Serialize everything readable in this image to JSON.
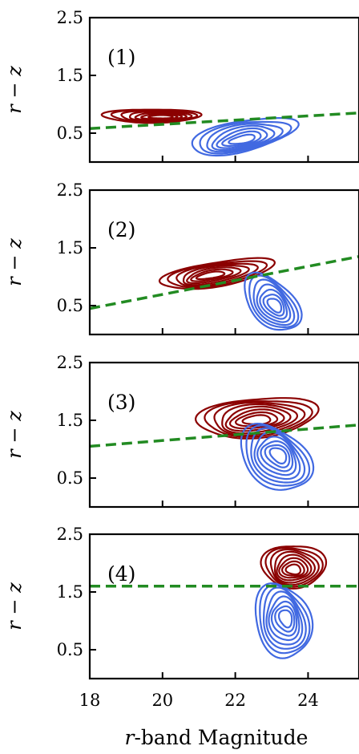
{
  "colors": {
    "bright_contour": "#8b0000",
    "faint_contour": "#4169e1",
    "divider_line": "#228b22"
  },
  "chart_data": {
    "type": "contour",
    "xlabel_var": "r",
    "xlabel_rest": "-band Magnitude",
    "xlim": [
      18,
      25.4
    ],
    "x_ticks": [
      "18",
      "20",
      "22",
      "24"
    ],
    "ylabel": "r − z",
    "ylim": [
      0,
      2.5
    ],
    "y_ticks": [
      "2.5",
      "1.5",
      "0.5"
    ],
    "panels": [
      {
        "label": "(1)",
        "divider_line": {
          "x": [
            18,
            25.4
          ],
          "y": [
            0.58,
            0.85
          ]
        },
        "series": [
          {
            "color_key": "bright_contour",
            "center": [
              19.7,
              0.8
            ],
            "peak": [
              20.0,
              0.78
            ],
            "spread": [
              1.3,
              0.12
            ],
            "tilt": 0.0,
            "levels": 7
          },
          {
            "color_key": "faint_contour",
            "center": [
              22.2,
              0.45
            ],
            "peak": [
              22.2,
              0.38
            ],
            "spread": [
              1.4,
              0.28
            ],
            "tilt": 0.12,
            "levels": 7
          }
        ]
      },
      {
        "label": "(2)",
        "divider_line": {
          "x": [
            18,
            25.4
          ],
          "y": [
            0.45,
            1.35
          ]
        },
        "series": [
          {
            "color_key": "bright_contour",
            "center": [
              21.5,
              1.05
            ],
            "peak": [
              21.3,
              1.02
            ],
            "spread": [
              1.5,
              0.22
            ],
            "tilt": 0.1,
            "levels": 7
          },
          {
            "color_key": "faint_contour",
            "center": [
              23.0,
              0.55
            ],
            "peak": [
              23.1,
              0.5
            ],
            "spread": [
              0.75,
              0.45
            ],
            "tilt": -0.3,
            "levels": 7
          }
        ]
      },
      {
        "label": "(3)",
        "divider_line": {
          "x": [
            18,
            25.4
          ],
          "y": [
            1.05,
            1.42
          ]
        },
        "series": [
          {
            "color_key": "bright_contour",
            "center": [
              22.6,
              1.55
            ],
            "peak": [
              22.6,
              1.5
            ],
            "spread": [
              1.6,
              0.35
            ],
            "tilt": 0.05,
            "levels": 8
          },
          {
            "color_key": "faint_contour",
            "center": [
              23.1,
              0.85
            ],
            "peak": [
              23.2,
              0.9
            ],
            "spread": [
              0.95,
              0.55
            ],
            "tilt": -0.2,
            "levels": 8
          }
        ]
      },
      {
        "label": "(4)",
        "divider_line": {
          "x": [
            18,
            25.4
          ],
          "y": [
            1.6,
            1.6
          ]
        },
        "series": [
          {
            "color_key": "bright_contour",
            "center": [
              23.6,
              1.95
            ],
            "peak": [
              23.6,
              1.88
            ],
            "spread": [
              0.85,
              0.38
            ],
            "tilt": 0.0,
            "levels": 8
          },
          {
            "color_key": "faint_contour",
            "center": [
              23.3,
              1.0
            ],
            "peak": [
              23.4,
              1.05
            ],
            "spread": [
              0.75,
              0.65
            ],
            "tilt": -0.15,
            "levels": 8
          }
        ]
      }
    ]
  }
}
